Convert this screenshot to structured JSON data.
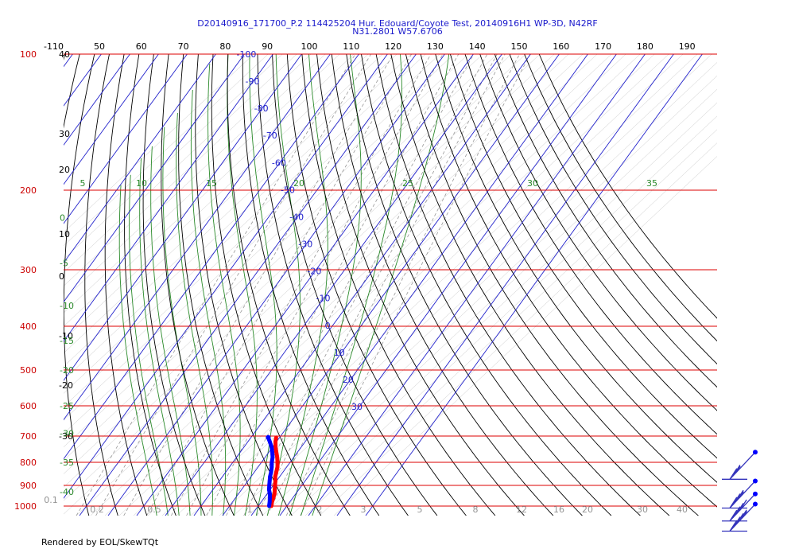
{
  "title_line1": "D20140916_171700_P.2 114425204 Hur. Edouard/Coyote Test, 20140916H1 WP-3D, N42RF",
  "title_line2": "N31.2801 W57.6706",
  "footer": "Rendered by EOL/SkewTQt",
  "colors": {
    "isobar": "#dd0000",
    "isotherm": "#2222cc",
    "dry_adiabat": "#000000",
    "moist_adiabat": "#2a8a2a",
    "mixing_ratio": "#999999",
    "temperature_trace": "#ff0000",
    "dewpoint_trace": "#0000ff",
    "wind_barb": "#3333bb",
    "pressure_label": "#cc0000",
    "theta_label": "#000000",
    "thetae_label": "#2a8a2a",
    "isotherm_label": "#2222cc",
    "mixing_label": "#808080"
  },
  "chart_data": {
    "type": "skew-t",
    "pressure_levels": [
      "100",
      "200",
      "300",
      "400",
      "500",
      "600",
      "700",
      "800",
      "900",
      "1000"
    ],
    "top_temperature_labels": [
      "-110",
      "50",
      "60",
      "70",
      "80",
      "90",
      "100",
      "110",
      "120",
      "130",
      "140",
      "150",
      "160",
      "170",
      "180",
      "190"
    ],
    "isotherm_labels": [
      {
        "label": "-100",
        "value": -100
      },
      {
        "label": "-90",
        "value": -90
      },
      {
        "label": "-80",
        "value": -80
      },
      {
        "label": "-70",
        "value": -70
      },
      {
        "label": "-60",
        "value": -60
      },
      {
        "label": "-50",
        "value": -50
      },
      {
        "label": "-40",
        "value": -40
      },
      {
        "label": "-30",
        "value": -30
      },
      {
        "label": "-20",
        "value": -20
      },
      {
        "label": "-10",
        "value": -10
      },
      {
        "label": "0",
        "value": 0
      },
      {
        "label": "10",
        "value": 10
      },
      {
        "label": "20",
        "value": 20
      },
      {
        "label": "30",
        "value": 30
      }
    ],
    "theta_labels_left": [
      {
        "label": "40",
        "p": 100
      },
      {
        "label": "30",
        "p": 150
      },
      {
        "label": "20",
        "p": 180
      },
      {
        "label": "10",
        "p": 250
      },
      {
        "label": "0",
        "p": 310
      },
      {
        "label": "-10",
        "p": 420
      },
      {
        "label": "-20",
        "p": 540
      },
      {
        "label": "-30",
        "p": 700
      }
    ],
    "thetae_labels_left": [
      {
        "label": "0",
        "p": 230
      },
      {
        "label": "-5",
        "p": 290
      },
      {
        "label": "-10",
        "p": 360
      },
      {
        "label": "-15",
        "p": 430
      },
      {
        "label": "-20",
        "p": 500
      },
      {
        "label": "-25",
        "p": 600
      },
      {
        "label": "-30",
        "p": 690
      },
      {
        "label": "-35",
        "p": 800
      },
      {
        "label": "-40",
        "p": 930
      }
    ],
    "thetae_labels_top": [
      "5",
      "10",
      "15",
      "20",
      "25",
      "30",
      "35"
    ],
    "mixing_ratio_labels": [
      "0.1",
      "0.2",
      "0.5",
      "1",
      "2",
      "3",
      "5",
      "8",
      "12",
      "16",
      "20",
      "30",
      "40"
    ],
    "temperature_profile": [
      {
        "p": 1000,
        "t": 24.6
      },
      {
        "p": 980,
        "t": 23.8
      },
      {
        "p": 960,
        "t": 23.2
      },
      {
        "p": 940,
        "t": 22.6
      },
      {
        "p": 920,
        "t": 21.6
      },
      {
        "p": 900,
        "t": 20.6
      },
      {
        "p": 880,
        "t": 19.6
      },
      {
        "p": 860,
        "t": 18.4
      },
      {
        "p": 840,
        "t": 17.6
      },
      {
        "p": 820,
        "t": 16.8
      },
      {
        "p": 800,
        "t": 15.6
      },
      {
        "p": 780,
        "t": 14.2
      },
      {
        "p": 760,
        "t": 12.6
      },
      {
        "p": 740,
        "t": 11.0
      },
      {
        "p": 720,
        "t": 9.6
      },
      {
        "p": 705,
        "t": 8.8
      }
    ],
    "dewpoint_profile": [
      {
        "p": 1000,
        "t": 23.8
      },
      {
        "p": 980,
        "t": 23.0
      },
      {
        "p": 960,
        "t": 22.0
      },
      {
        "p": 940,
        "t": 21.0
      },
      {
        "p": 920,
        "t": 19.6
      },
      {
        "p": 900,
        "t": 18.6
      },
      {
        "p": 880,
        "t": 17.6
      },
      {
        "p": 860,
        "t": 16.6
      },
      {
        "p": 840,
        "t": 15.8
      },
      {
        "p": 820,
        "t": 14.8
      },
      {
        "p": 800,
        "t": 13.6
      },
      {
        "p": 780,
        "t": 12.6
      },
      {
        "p": 760,
        "t": 11.2
      },
      {
        "p": 740,
        "t": 9.6
      },
      {
        "p": 720,
        "t": 7.6
      },
      {
        "p": 705,
        "t": 6.0
      }
    ],
    "wind_barbs": [
      {
        "p": 760,
        "speed_kt": 25
      },
      {
        "p": 880,
        "speed_kt": 35
      },
      {
        "p": 940,
        "speed_kt": 40
      },
      {
        "p": 990,
        "speed_kt": 45
      }
    ]
  }
}
